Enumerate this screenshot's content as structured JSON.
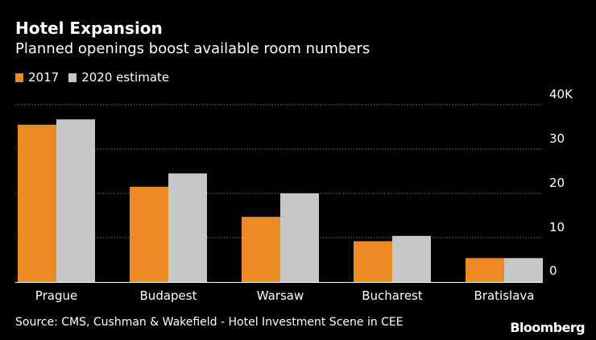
{
  "colors": {
    "background": "#000000",
    "text": "#ffffff",
    "grid": "#777777",
    "series_2017": "#ee8a23",
    "series_2020": "#c7c7c7"
  },
  "chart_data": {
    "type": "bar",
    "title": "Hotel Expansion",
    "subtitle": "Planned openings boost available room numbers",
    "categories": [
      "Prague",
      "Budapest",
      "Warsaw",
      "Bucharest",
      "Bratislava"
    ],
    "series": [
      {
        "name": "2017",
        "color": "#ee8a23",
        "values": [
          35.5,
          21.5,
          14.7,
          9.2,
          5.4
        ]
      },
      {
        "name": "2020 estimate",
        "color": "#c7c7c7",
        "values": [
          36.7,
          24.5,
          20.0,
          10.4,
          5.4
        ]
      }
    ],
    "y_ticks": [
      0,
      10,
      20,
      30,
      40
    ],
    "y_tick_labels": [
      "0",
      "10",
      "20",
      "30",
      "40K"
    ],
    "ylim": [
      0,
      40
    ],
    "ylabel": "",
    "xlabel": "",
    "legend_position": "top-left",
    "y_axis_side": "right",
    "grid": true
  },
  "source": "Source: CMS, Cushman & Wakefield - Hotel Investment Scene in CEE",
  "brand": "Bloomberg"
}
